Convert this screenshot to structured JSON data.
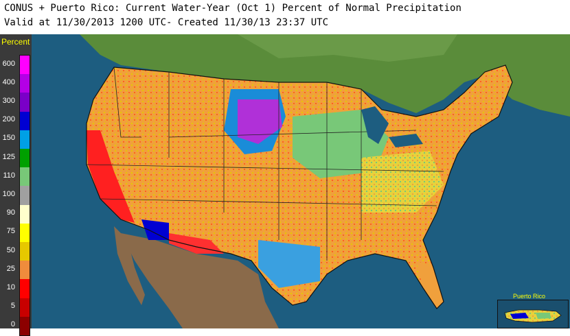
{
  "header": {
    "line1": "CONUS + Puerto Rico: Current Water-Year (Oct 1) Percent of Normal Precipitation",
    "line2": "Valid at 11/30/2013 1200 UTC- Created 11/30/13 23:37 UTC"
  },
  "legend": {
    "title": "Percent",
    "bins": [
      {
        "label": "600",
        "color": "#ff00ff"
      },
      {
        "label": "400",
        "color": "#b400e6"
      },
      {
        "label": "300",
        "color": "#7a00c8"
      },
      {
        "label": "200",
        "color": "#0000d2"
      },
      {
        "label": "150",
        "color": "#00a0e6"
      },
      {
        "label": "125",
        "color": "#00a000"
      },
      {
        "label": "110",
        "color": "#78c878"
      },
      {
        "label": "100",
        "color": "#a0a0a0"
      },
      {
        "label": "90",
        "color": "#ffffcc"
      },
      {
        "label": "75",
        "color": "#ffff00"
      },
      {
        "label": "50",
        "color": "#e6c800"
      },
      {
        "label": "25",
        "color": "#f08c3c"
      },
      {
        "label": "10",
        "color": "#ff0000"
      },
      {
        "label": "5",
        "color": "#c80000"
      },
      {
        "label": "0",
        "color": "#8c0000"
      }
    ]
  },
  "inset": {
    "title": "Puerto Rico"
  }
}
